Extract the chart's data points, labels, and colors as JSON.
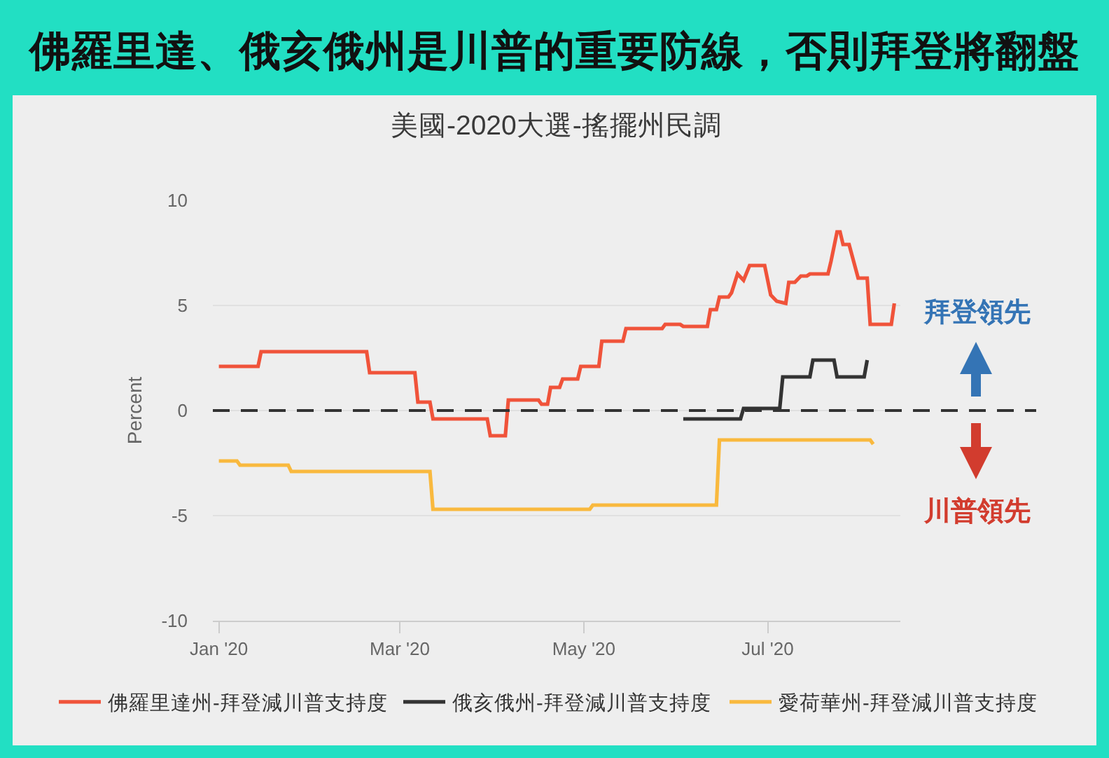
{
  "chart_data": {
    "type": "line",
    "title": "佛羅里達、俄亥俄州是川普的重要防線，否則拜登將翻盤",
    "subtitle": "美國-2020大選-搖擺州民調",
    "ylabel": "Percent",
    "annotations": [
      "拜登領先",
      "川普領先"
    ],
    "series": [
      {
        "name": "佛羅里達州-拜登減川普支持度",
        "color": "#f0533a",
        "x": [
          "2020-01-01",
          "2020-01-14",
          "2020-01-15",
          "2020-02-19",
          "2020-02-20",
          "2020-03-06",
          "2020-03-07",
          "2020-03-11",
          "2020-03-12",
          "2020-03-30",
          "2020-03-31",
          "2020-04-05",
          "2020-04-06",
          "2020-04-16",
          "2020-04-17",
          "2020-04-19",
          "2020-04-20",
          "2020-04-23",
          "2020-04-24",
          "2020-04-29",
          "2020-04-30",
          "2020-05-06",
          "2020-05-07",
          "2020-05-14",
          "2020-05-15",
          "2020-05-27",
          "2020-05-28",
          "2020-06-02",
          "2020-06-03",
          "2020-06-11",
          "2020-06-12",
          "2020-06-14",
          "2020-06-15",
          "2020-06-18",
          "2020-06-19",
          "2020-06-21",
          "2020-06-23",
          "2020-06-25",
          "2020-06-30",
          "2020-07-02",
          "2020-07-04",
          "2020-07-07",
          "2020-07-08",
          "2020-07-10",
          "2020-07-12",
          "2020-07-14",
          "2020-07-15",
          "2020-07-21",
          "2020-07-22",
          "2020-07-24",
          "2020-07-25",
          "2020-07-26",
          "2020-07-28",
          "2020-07-31",
          "2020-08-03",
          "2020-08-04",
          "2020-08-11",
          "2020-08-12"
        ],
        "values": [
          2.1,
          2.1,
          2.8,
          2.8,
          1.8,
          1.8,
          0.4,
          0.4,
          -0.4,
          -0.4,
          -1.2,
          -1.2,
          0.5,
          0.5,
          0.3,
          0.3,
          1.1,
          1.1,
          1.5,
          1.5,
          2.1,
          2.1,
          3.3,
          3.3,
          3.9,
          3.9,
          4.1,
          4.1,
          4.0,
          4.0,
          4.8,
          4.8,
          5.4,
          5.4,
          5.6,
          6.5,
          6.2,
          6.9,
          6.9,
          5.5,
          5.2,
          5.1,
          6.1,
          6.1,
          6.4,
          6.4,
          6.5,
          6.5,
          7.1,
          8.5,
          8.5,
          7.9,
          7.9,
          6.3,
          6.3,
          4.1,
          4.1,
          5.1
        ]
      },
      {
        "name": "俄亥俄州-拜登減川普支持度",
        "color": "#333333",
        "x": [
          "2020-06-03",
          "2020-06-22",
          "2020-06-23",
          "2020-07-05",
          "2020-07-06",
          "2020-07-15",
          "2020-07-16",
          "2020-07-23",
          "2020-07-24",
          "2020-08-02",
          "2020-08-03"
        ],
        "values": [
          -0.4,
          -0.4,
          0.1,
          0.1,
          1.6,
          1.6,
          2.4,
          2.4,
          1.6,
          1.6,
          2.4
        ]
      },
      {
        "name": "愛荷華州-拜登減川普支持度",
        "color": "#f9b93e",
        "x": [
          "2020-01-01",
          "2020-01-07",
          "2020-01-08",
          "2020-01-24",
          "2020-01-25",
          "2020-03-11",
          "2020-03-12",
          "2020-05-03",
          "2020-05-04",
          "2020-06-14",
          "2020-06-15",
          "2020-08-04",
          "2020-08-05"
        ],
        "values": [
          -2.4,
          -2.4,
          -2.6,
          -2.6,
          -2.9,
          -2.9,
          -4.7,
          -4.7,
          -4.5,
          -4.5,
          -1.4,
          -1.4,
          -1.6
        ]
      }
    ],
    "xlim": [
      "2019-12-30",
      "2020-08-14"
    ],
    "xticks": [
      {
        "value": "2020-01-01",
        "label": "Jan '20"
      },
      {
        "value": "2020-03-01",
        "label": "Mar '20"
      },
      {
        "value": "2020-05-01",
        "label": "May '20"
      },
      {
        "value": "2020-07-01",
        "label": "Jul '20"
      }
    ],
    "ylim": [
      -10,
      10
    ],
    "yticks": [
      -10,
      -5,
      0,
      5,
      10
    ],
    "ref_lines": [
      {
        "axis": "y",
        "value": 0,
        "color": "#333333",
        "line_style": "dashed"
      }
    ],
    "grid": "y",
    "legend": "bottom"
  }
}
